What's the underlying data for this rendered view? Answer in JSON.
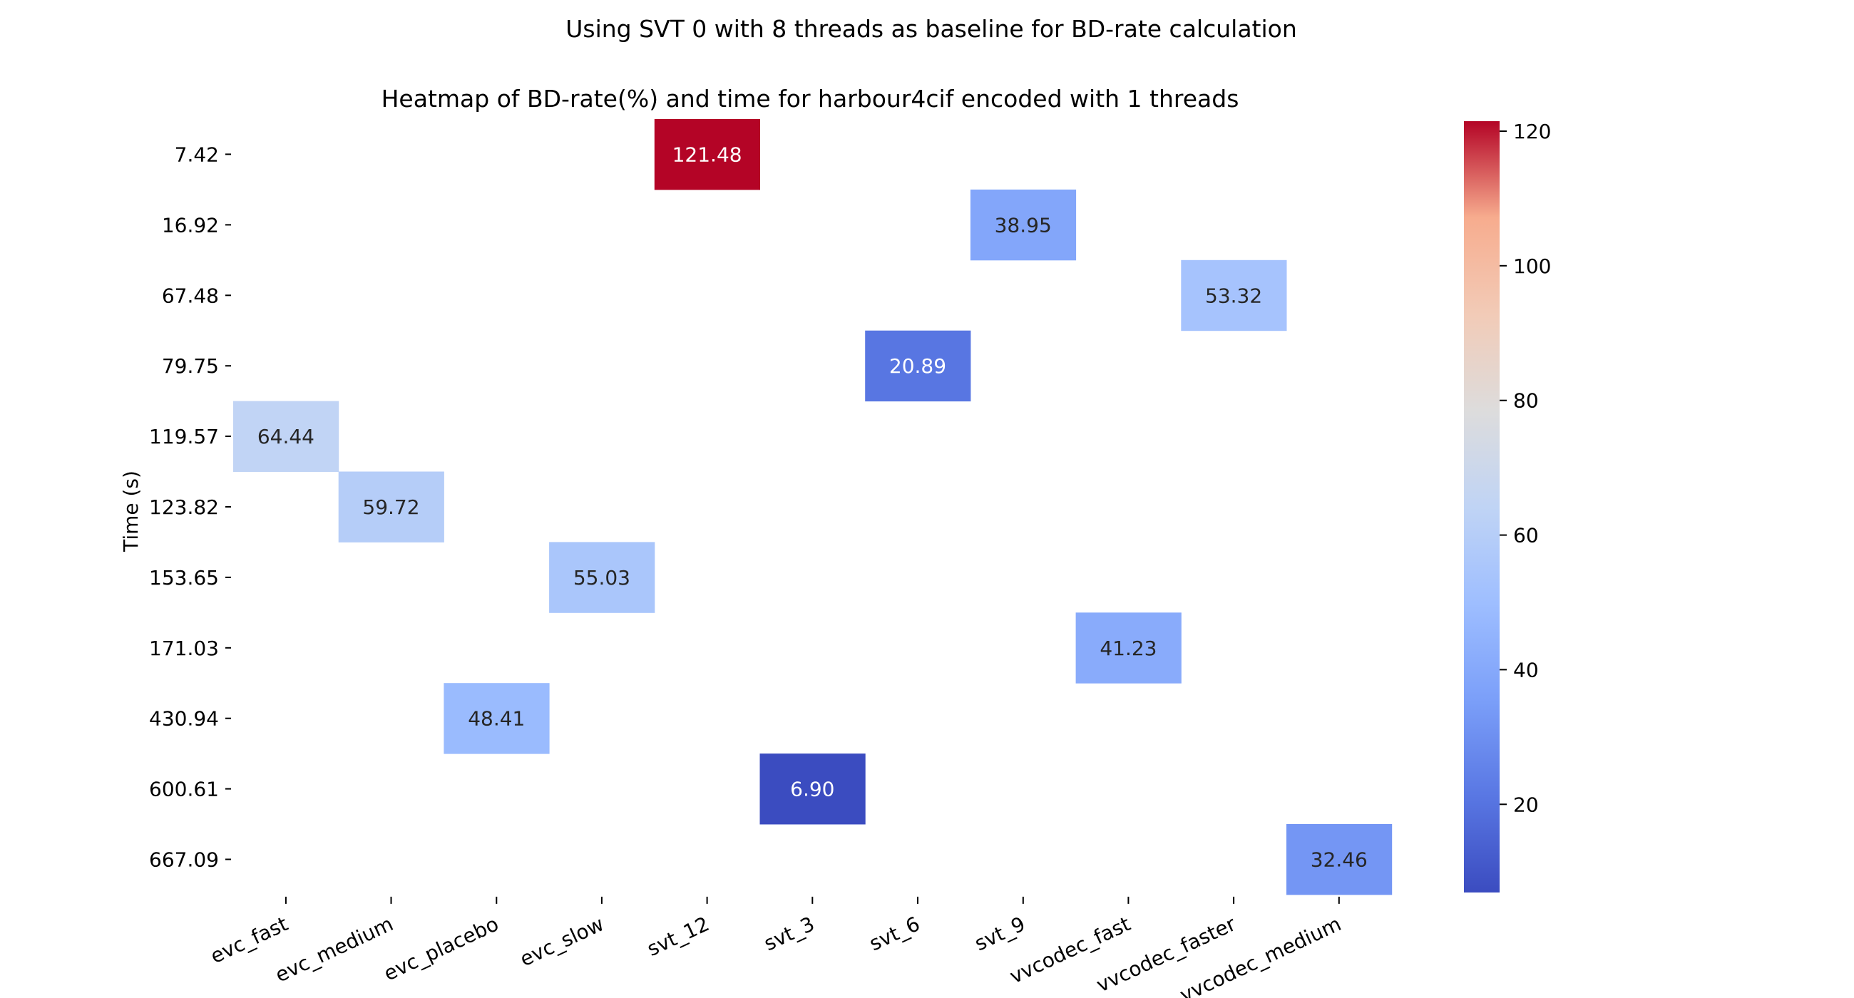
{
  "chart_data": {
    "type": "heatmap",
    "suptitle": "Using SVT 0 with 8 threads as baseline for BD-rate calculation",
    "title": "Heatmap of BD-rate(%) and time for harbour4cif encoded with 1 threads",
    "ylabel": "Time (s)",
    "xlabel": "",
    "x_categories": [
      "evc_fast",
      "evc_medium",
      "evc_placebo",
      "evc_slow",
      "svt_12",
      "svt_3",
      "svt_6",
      "svt_9",
      "vvcodec_fast",
      "vvcodec_faster",
      "vvcodec_medium"
    ],
    "y_categories": [
      "7.42",
      "16.92",
      "67.48",
      "79.75",
      "119.57",
      "123.82",
      "153.65",
      "171.03",
      "430.94",
      "600.61",
      "667.09"
    ],
    "cells": [
      {
        "x": "svt_12",
        "y": "7.42",
        "value": 121.48,
        "label": "121.48"
      },
      {
        "x": "svt_9",
        "y": "16.92",
        "value": 38.95,
        "label": "38.95"
      },
      {
        "x": "vvcodec_faster",
        "y": "67.48",
        "value": 53.32,
        "label": "53.32"
      },
      {
        "x": "svt_6",
        "y": "79.75",
        "value": 20.89,
        "label": "20.89"
      },
      {
        "x": "evc_fast",
        "y": "119.57",
        "value": 64.44,
        "label": "64.44"
      },
      {
        "x": "evc_medium",
        "y": "123.82",
        "value": 59.72,
        "label": "59.72"
      },
      {
        "x": "evc_slow",
        "y": "153.65",
        "value": 55.03,
        "label": "55.03"
      },
      {
        "x": "vvcodec_fast",
        "y": "171.03",
        "value": 41.23,
        "label": "41.23"
      },
      {
        "x": "evc_placebo",
        "y": "430.94",
        "value": 48.41,
        "label": "48.41"
      },
      {
        "x": "svt_3",
        "y": "600.61",
        "value": 6.9,
        "label": "6.90"
      },
      {
        "x": "vvcodec_medium",
        "y": "667.09",
        "value": 32.46,
        "label": "32.46"
      }
    ],
    "colormap": "coolwarm",
    "vmin": 6.9,
    "vmax": 121.48,
    "colorbar_ticks": [
      20,
      40,
      60,
      80,
      100,
      120
    ],
    "colorbar_tick_labels": [
      "20",
      "40",
      "60",
      "80",
      "100",
      "120"
    ],
    "grid": false,
    "colorbar_placement": "right"
  }
}
